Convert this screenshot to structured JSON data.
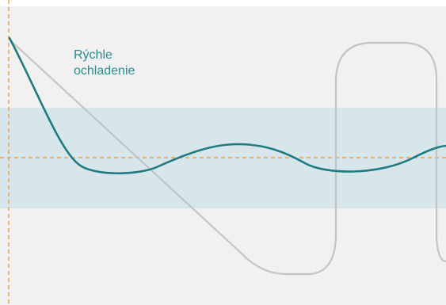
{
  "annotation": {
    "label": "Rýchle\nochladenie"
  },
  "colors": {
    "background_panel": "#f1f1f1",
    "target_band": "#d6e6ea",
    "reference_dash": "#e8a04a",
    "teal_curve": "#1f7b80",
    "grey_curve": "#c4c4c4",
    "label_text": "#2a8c8f"
  }
}
